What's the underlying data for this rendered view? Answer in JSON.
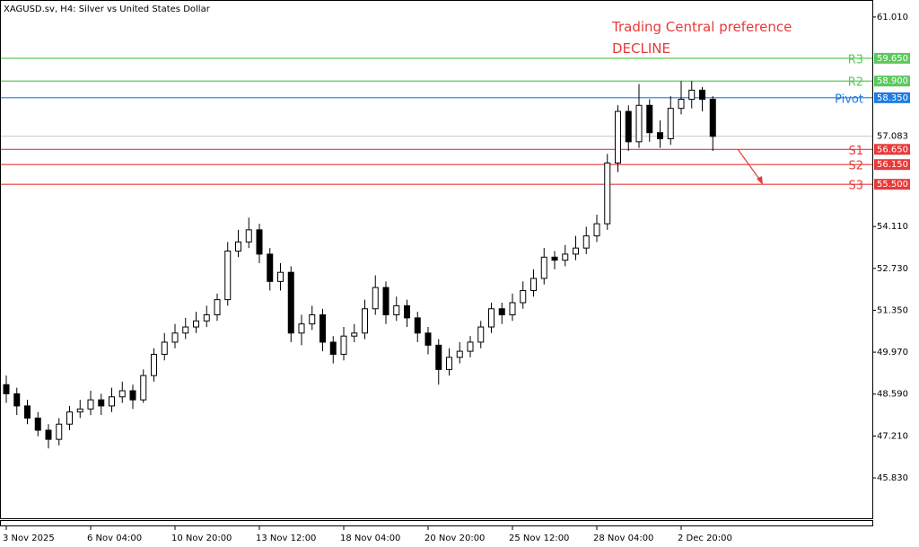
{
  "chart_data": {
    "type": "candlestick",
    "title": "XAGUSD.sv, H4:  Silver vs United States Dollar",
    "annotations": [
      "Trading Central preference",
      "DECLINE"
    ],
    "categories": [
      "3 Nov 2025",
      null,
      null,
      null,
      null,
      null,
      null,
      null,
      "6 Nov 04:00",
      null,
      null,
      null,
      null,
      null,
      null,
      null,
      "10 Nov 20:00",
      null,
      null,
      null,
      null,
      null,
      null,
      null,
      "13 Nov 12:00",
      null,
      null,
      null,
      null,
      null,
      null,
      null,
      "18 Nov 04:00",
      null,
      null,
      null,
      null,
      null,
      null,
      null,
      "20 Nov 20:00",
      null,
      null,
      null,
      null,
      null,
      null,
      null,
      "25 Nov 12:00",
      null,
      null,
      null,
      null,
      null,
      null,
      null,
      "28 Nov 04:00",
      null,
      null,
      null,
      null,
      null,
      null,
      null,
      "2 Dec 20:00",
      null,
      null,
      null
    ],
    "open": [
      48.9,
      48.6,
      48.2,
      47.8,
      47.4,
      47.1,
      47.6,
      48.0,
      48.1,
      48.4,
      48.2,
      48.5,
      48.7,
      48.4,
      49.2,
      49.9,
      50.3,
      50.6,
      50.8,
      51.0,
      51.2,
      51.7,
      53.3,
      53.6,
      54.0,
      53.2,
      52.3,
      52.6,
      50.6,
      50.9,
      51.2,
      50.3,
      49.9,
      50.5,
      50.6,
      51.4,
      52.1,
      51.2,
      51.5,
      51.1,
      50.6,
      50.2,
      49.4,
      49.8,
      50.0,
      50.3,
      50.8,
      51.4,
      51.2,
      51.6,
      52.0,
      52.4,
      53.1,
      53.0,
      53.2,
      53.4,
      53.8,
      54.2,
      56.2,
      57.9,
      56.9,
      58.1,
      57.2,
      57.0,
      58.0,
      58.3,
      58.6,
      58.3
    ],
    "high": [
      49.2,
      48.8,
      48.4,
      48.0,
      47.6,
      47.8,
      48.2,
      48.4,
      48.7,
      48.6,
      48.8,
      49.0,
      48.9,
      49.4,
      50.1,
      50.6,
      50.9,
      51.1,
      51.3,
      51.5,
      51.9,
      53.6,
      54.0,
      54.4,
      54.2,
      53.4,
      52.9,
      52.8,
      51.2,
      51.5,
      51.4,
      50.5,
      50.8,
      50.9,
      51.7,
      52.5,
      52.3,
      51.8,
      51.7,
      51.3,
      50.8,
      50.4,
      50.1,
      50.3,
      50.5,
      51.0,
      51.6,
      51.6,
      51.9,
      52.3,
      52.7,
      53.4,
      53.3,
      53.5,
      53.8,
      54.1,
      54.5,
      56.5,
      58.1,
      58.1,
      58.8,
      58.3,
      57.6,
      58.4,
      58.9,
      58.9,
      58.7,
      58.4
    ],
    "low": [
      48.3,
      47.9,
      47.6,
      47.2,
      46.8,
      46.9,
      47.4,
      47.8,
      47.9,
      47.9,
      48.0,
      48.3,
      48.1,
      48.3,
      49.0,
      49.7,
      50.1,
      50.4,
      50.6,
      50.8,
      51.0,
      51.5,
      53.1,
      53.4,
      52.9,
      52.0,
      52.0,
      50.3,
      50.2,
      50.7,
      50.0,
      49.6,
      49.7,
      50.3,
      50.4,
      51.2,
      50.9,
      51.0,
      50.8,
      50.3,
      49.9,
      48.9,
      49.2,
      49.6,
      49.8,
      50.1,
      50.6,
      50.9,
      51.0,
      51.4,
      51.8,
      52.2,
      52.7,
      52.8,
      53.0,
      53.2,
      53.6,
      54.0,
      55.9,
      56.6,
      56.7,
      56.9,
      56.7,
      56.8,
      57.8,
      58.0,
      57.9,
      56.6
    ],
    "close": [
      48.6,
      48.2,
      47.8,
      47.4,
      47.1,
      47.6,
      48.0,
      48.1,
      48.4,
      48.2,
      48.5,
      48.7,
      48.4,
      49.2,
      49.9,
      50.3,
      50.6,
      50.8,
      51.0,
      51.2,
      51.7,
      53.3,
      53.6,
      54.0,
      53.2,
      52.3,
      52.6,
      50.6,
      50.9,
      51.2,
      50.3,
      49.9,
      50.5,
      50.6,
      51.4,
      52.1,
      51.2,
      51.5,
      51.1,
      50.6,
      50.2,
      49.4,
      49.8,
      50.0,
      50.3,
      50.8,
      51.4,
      51.2,
      51.6,
      52.0,
      52.4,
      53.1,
      53.0,
      53.2,
      53.4,
      53.8,
      54.2,
      56.2,
      57.9,
      56.9,
      58.1,
      57.2,
      57.0,
      58.0,
      58.3,
      58.6,
      58.3,
      57.08
    ],
    "levels": [
      {
        "name": "R3",
        "value": 59.65,
        "value_label": "59.650",
        "color": "#5cc85c"
      },
      {
        "name": "R2",
        "value": 58.9,
        "value_label": "58.900",
        "color": "#5cc85c"
      },
      {
        "name": "Pivot",
        "value": 58.35,
        "value_label": "58.350",
        "color": "#1e7be0"
      },
      {
        "name": "S1",
        "value": 56.65,
        "value_label": "56.650",
        "color": "#e83a3a"
      },
      {
        "name": "S2",
        "value": 56.15,
        "value_label": "56.150",
        "color": "#e83a3a"
      },
      {
        "name": "S3",
        "value": 55.5,
        "value_label": "55.500",
        "color": "#e83a3a"
      }
    ],
    "current_price": 57.083,
    "ylim": [
      44.5,
      61.54
    ],
    "yticks": [
      {
        "value": 61.01,
        "label": "61.010"
      },
      {
        "value": 54.11,
        "label": "54.110"
      },
      {
        "value": 52.73,
        "label": "52.730"
      },
      {
        "value": 51.35,
        "label": "51.350"
      },
      {
        "value": 49.97,
        "label": "49.970"
      },
      {
        "value": 48.59,
        "label": "48.590"
      },
      {
        "value": 47.21,
        "label": "47.210"
      },
      {
        "value": 45.83,
        "label": "45.830"
      }
    ]
  }
}
